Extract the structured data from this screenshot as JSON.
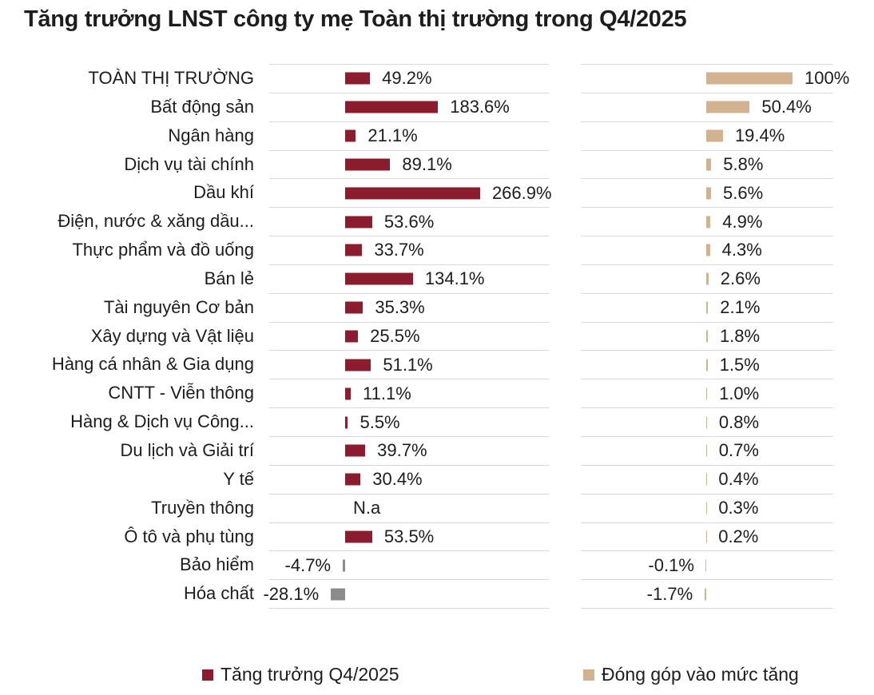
{
  "title": "Tăng trưởng LNST công ty mẹ Toàn thị trường trong Q4/2025",
  "legend": [
    {
      "label": "Tăng trưởng Q4/2025",
      "color": "#8C1D2F"
    },
    {
      "label": "Đóng góp vào mức tăng",
      "color": "#D3B28F"
    }
  ],
  "colors": {
    "growth_bar": "#8C1D2F",
    "growth_bar_negative": "#8C8C8C",
    "contribution_bar": "#D3B28F",
    "gridline": "#D9D9D9",
    "text": "#1D1D1D"
  },
  "na_label": "N.a",
  "chart_data": {
    "type": "bar",
    "orientation": "horizontal",
    "title": "Tăng trưởng LNST công ty mẹ Toàn thị trường trong Q4/2025",
    "grid": "horizontal-category-separators",
    "legend_position": "bottom",
    "categories": [
      "TOÀN THỊ TRƯỜNG",
      "Bất động sản",
      "Ngân hàng",
      "Dịch vụ tài chính",
      "Dầu khí",
      "Điện, nước & xăng dầu...",
      "Thực phẩm và đồ uống",
      "Bán lẻ",
      "Tài nguyên Cơ bản",
      "Xây dựng và Vật liệu",
      "Hàng cá nhân & Gia dụng",
      "CNTT - Viễn thông",
      "Hàng & Dịch vụ Công...",
      "Du lịch và Giải trí",
      "Y tế",
      "Truyền thông",
      "Ô tô và phụ tùng",
      "Bảo hiểm",
      "Hóa chất"
    ],
    "series": [
      {
        "name": "Tăng trưởng Q4/2025",
        "unit": "%",
        "axis_range_approx": [
          -150,
          400
        ],
        "values": [
          49.2,
          183.6,
          21.1,
          89.1,
          266.9,
          53.6,
          33.7,
          134.1,
          35.3,
          25.5,
          51.1,
          11.1,
          5.5,
          39.7,
          30.4,
          null,
          53.5,
          -4.7,
          -28.1
        ],
        "labels": [
          "49.2%",
          "183.6%",
          "21.1%",
          "89.1%",
          "266.9%",
          "53.6%",
          "33.7%",
          "134.1%",
          "35.3%",
          "25.5%",
          "51.1%",
          "11.1%",
          "5.5%",
          "39.7%",
          "30.4%",
          "N.a",
          "53.5%",
          "-4.7%",
          "-28.1%"
        ]
      },
      {
        "name": "Đóng góp vào mức tăng",
        "unit": "%",
        "axis_range_approx": [
          -145,
          147
        ],
        "values": [
          100,
          50.4,
          19.4,
          5.8,
          5.6,
          4.9,
          4.3,
          2.6,
          2.1,
          1.8,
          1.5,
          1.0,
          0.8,
          0.7,
          0.4,
          0.3,
          0.2,
          -0.1,
          -1.7
        ],
        "labels": [
          "100%",
          "50.4%",
          "19.4%",
          "5.8%",
          "5.6%",
          "4.9%",
          "4.3%",
          "2.6%",
          "2.1%",
          "1.8%",
          "1.5%",
          "1.0%",
          "0.8%",
          "0.7%",
          "0.4%",
          "0.3%",
          "0.2%",
          "-0.1%",
          "-1.7%"
        ]
      }
    ]
  }
}
